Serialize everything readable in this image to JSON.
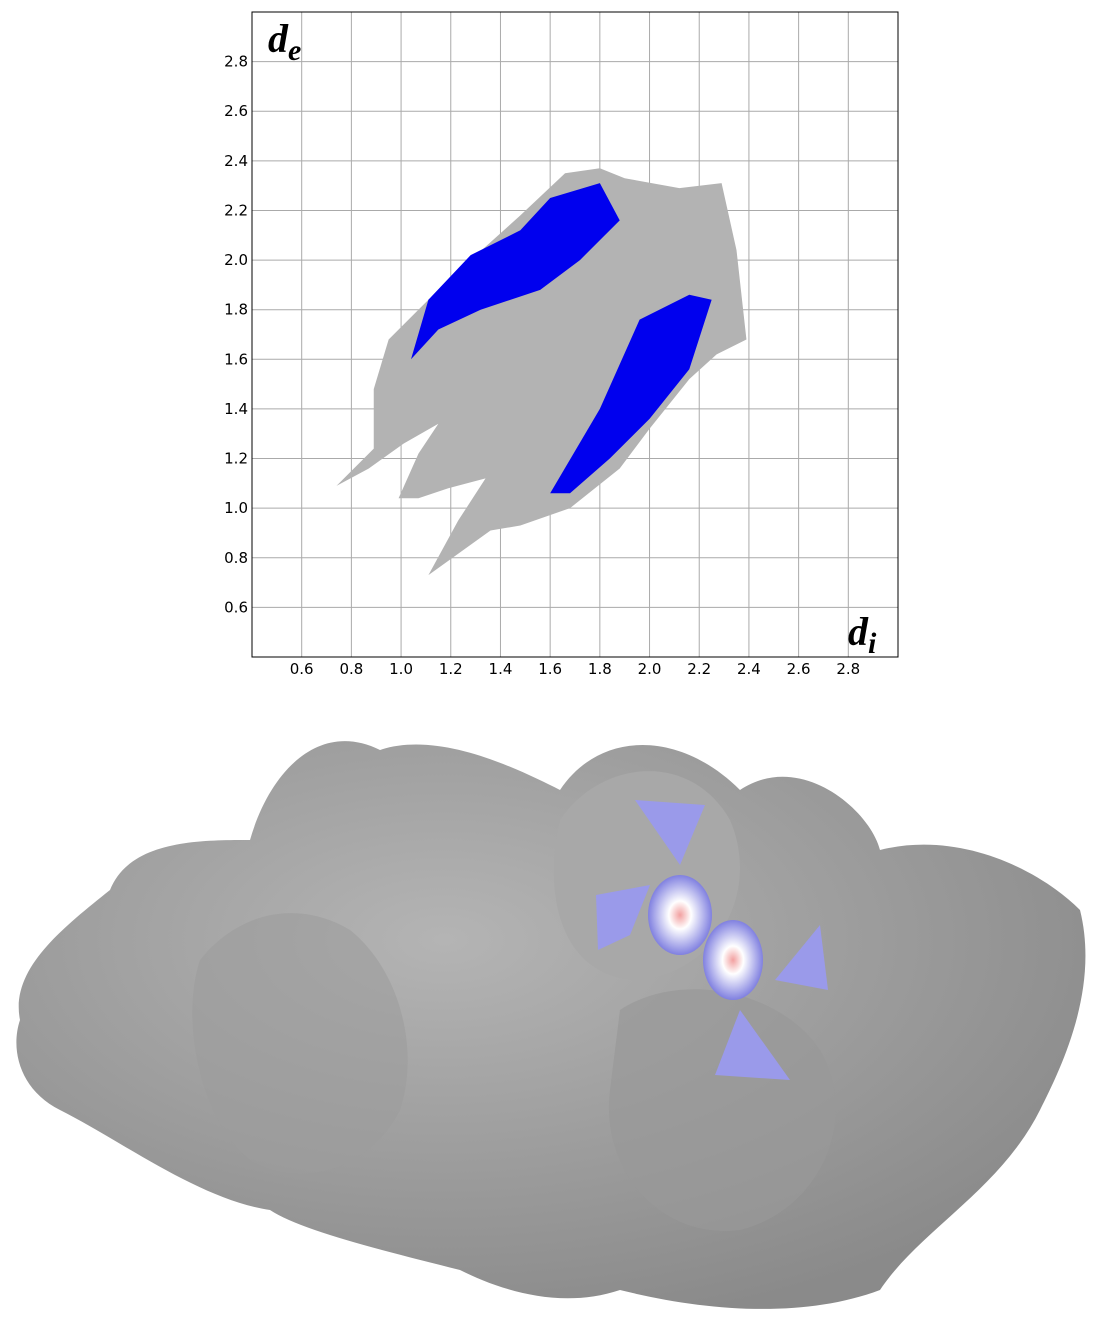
{
  "chart_data": {
    "type": "region",
    "xlabel": "d",
    "xlabel_subscript": "i",
    "ylabel": "d",
    "ylabel_subscript": "e",
    "xlim": [
      0.4,
      3.0
    ],
    "ylim": [
      0.4,
      3.0
    ],
    "xticks": [
      0.6,
      0.8,
      {
        "value": 1.0,
        "label": "1.0"
      },
      1.2,
      1.4,
      1.6,
      1.8,
      {
        "value": 2.0,
        "label": "2.0"
      },
      2.2,
      2.4,
      2.6,
      2.8
    ],
    "yticks": [
      0.6,
      0.8,
      {
        "value": 1.0,
        "label": "1.0"
      },
      1.2,
      1.4,
      1.6,
      1.8,
      {
        "value": 2.0,
        "label": "2.0"
      },
      2.2,
      2.4,
      2.6,
      2.8
    ],
    "grid": true,
    "series": [
      {
        "color": "#b3b3b3",
        "x": [
          0.74,
          0.89,
          0.89,
          0.95,
          1.11,
          1.28,
          1.48,
          1.66,
          1.8,
          1.9,
          2.12,
          2.29,
          2.35,
          2.39,
          2.27,
          2.16,
          2.0,
          1.88,
          1.68,
          1.48,
          1.36,
          1.11,
          1.23,
          1.34,
          1.19,
          1.07,
          0.99,
          1.07,
          1.15,
          1.01,
          0.87
        ],
        "y": [
          1.09,
          1.24,
          1.48,
          1.68,
          1.84,
          2.0,
          2.18,
          2.35,
          2.37,
          2.33,
          2.29,
          2.31,
          2.04,
          1.68,
          1.62,
          1.52,
          1.32,
          1.16,
          1.0,
          0.93,
          0.91,
          0.73,
          0.95,
          1.12,
          1.08,
          1.04,
          1.04,
          1.22,
          1.34,
          1.26,
          1.16
        ]
      },
      {
        "color": "#0000ee",
        "x": [
          1.04,
          1.11,
          1.28,
          1.48,
          1.6,
          1.8,
          1.88,
          1.72,
          1.56,
          1.32,
          1.15
        ],
        "y": [
          1.6,
          1.84,
          2.02,
          2.12,
          2.25,
          2.31,
          2.16,
          2.0,
          1.88,
          1.8,
          1.72
        ]
      },
      {
        "color": "#0000ee",
        "x": [
          1.6,
          1.8,
          1.96,
          2.16,
          2.25,
          2.16,
          2.0,
          1.84,
          1.68
        ],
        "y": [
          1.06,
          1.4,
          1.76,
          1.86,
          1.84,
          1.56,
          1.36,
          1.2,
          1.06
        ]
      }
    ]
  }
}
